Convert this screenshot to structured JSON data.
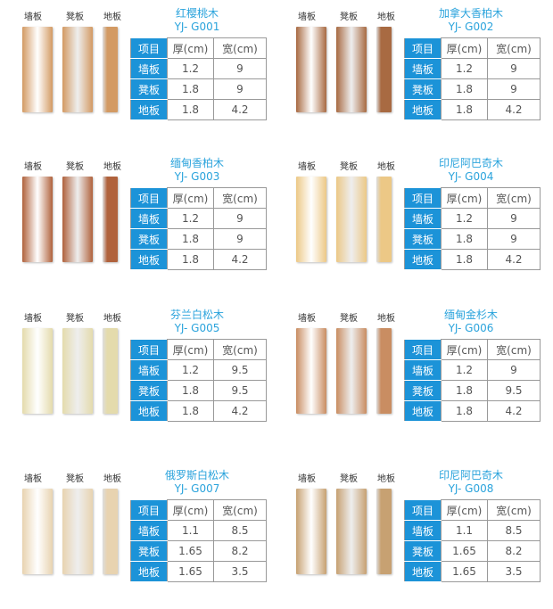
{
  "labels": {
    "wall": "墙板",
    "bench": "凳板",
    "floor": "地板"
  },
  "headers": [
    "项目",
    "厚(cm)",
    "宽(cm)"
  ],
  "products": [
    {
      "name": "红樱桃木",
      "code": "YJ- G001",
      "color": "#d39a63",
      "rows": [
        [
          "墙板",
          "1.2",
          "9"
        ],
        [
          "凳板",
          "1.8",
          "9"
        ],
        [
          "地板",
          "1.8",
          "4.2"
        ]
      ]
    },
    {
      "name": "加拿大香柏木",
      "code": "YJ- G002",
      "color": "#a86a42",
      "rows": [
        [
          "墙板",
          "1.2",
          "9"
        ],
        [
          "凳板",
          "1.8",
          "9"
        ],
        [
          "地板",
          "1.8",
          "4.2"
        ]
      ]
    },
    {
      "name": "缅甸香柏木",
      "code": "YJ- G003",
      "color": "#b0623c",
      "rows": [
        [
          "墙板",
          "1.2",
          "9"
        ],
        [
          "凳板",
          "1.8",
          "9"
        ],
        [
          "地板",
          "1.8",
          "4.2"
        ]
      ]
    },
    {
      "name": "印尼阿巴奇木",
      "code": "YJ- G004",
      "color": "#ecc886",
      "rows": [
        [
          "墙板",
          "1.2",
          "9"
        ],
        [
          "凳板",
          "1.8",
          "9"
        ],
        [
          "地板",
          "1.8",
          "4.2"
        ]
      ]
    },
    {
      "name": "芬兰白松木",
      "code": "YJ- G005",
      "color": "#e4dbac",
      "rows": [
        [
          "墙板",
          "1.2",
          "9.5"
        ],
        [
          "凳板",
          "1.8",
          "9.5"
        ],
        [
          "地板",
          "1.8",
          "4.2"
        ]
      ]
    },
    {
      "name": "缅甸金杉木",
      "code": "YJ- G006",
      "color": "#c98d62",
      "rows": [
        [
          "墙板",
          "1.2",
          "9"
        ],
        [
          "凳板",
          "1.8",
          "9.5"
        ],
        [
          "地板",
          "1.8",
          "4.2"
        ]
      ]
    },
    {
      "name": "俄罗斯白松木",
      "code": "YJ- G007",
      "color": "#e8d3b0",
      "rows": [
        [
          "墙板",
          "1.1",
          "8.5"
        ],
        [
          "凳板",
          "1.65",
          "8.2"
        ],
        [
          "地板",
          "1.65",
          "3.5"
        ]
      ]
    },
    {
      "name": "印尼阿巴奇木",
      "code": "YJ- G008",
      "color": "#c7a172",
      "rows": [
        [
          "墙板",
          "1.1",
          "8.5"
        ],
        [
          "凳板",
          "1.65",
          "8.2"
        ],
        [
          "地板",
          "1.65",
          "3.5"
        ]
      ]
    }
  ]
}
